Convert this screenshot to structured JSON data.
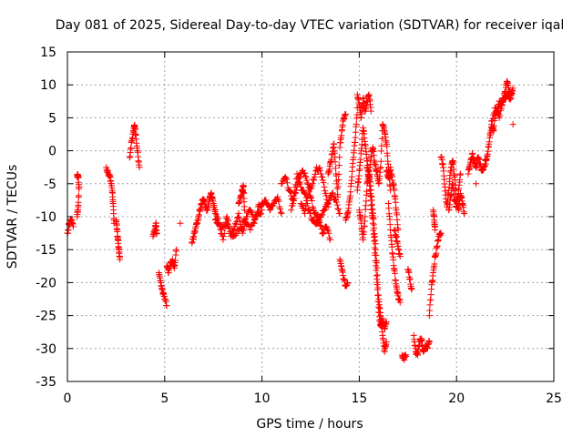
{
  "chart_data": {
    "type": "scatter",
    "title": "Day 081 of 2025, Sidereal Day-to-day VTEC variation (SDTVAR) for receiver iqal",
    "xlabel": "GPS time / hours",
    "ylabel": "SDTVAR / TECUs",
    "xlim": [
      0,
      25
    ],
    "ylim": [
      -35,
      15
    ],
    "xticks": [
      0,
      5,
      10,
      15,
      20,
      25
    ],
    "yticks": [
      -35,
      -30,
      -25,
      -20,
      -15,
      -10,
      -5,
      0,
      5,
      10,
      15
    ],
    "grid": true,
    "marker": "+",
    "color": "#ff0000",
    "segments": [
      {
        "x": [
          0.0,
          0.1,
          0.2,
          0.3
        ],
        "y": [
          -12.5,
          -11.0,
          -10.5,
          -11.5
        ]
      },
      {
        "x": [
          0.5,
          0.55,
          0.6,
          0.55,
          0.5
        ],
        "y": [
          -4.0,
          -3.8,
          -5.5,
          -8.5,
          -10.0
        ]
      },
      {
        "x": [
          2.0,
          2.1,
          2.2,
          2.3,
          2.35,
          2.4
        ],
        "y": [
          -2.5,
          -3.5,
          -4.0,
          -6.0,
          -8.0,
          -11.0
        ]
      },
      {
        "x": [
          2.5,
          2.55,
          2.6,
          2.65,
          2.7
        ],
        "y": [
          -10.5,
          -12.0,
          -13.5,
          -15.0,
          -16.5
        ]
      },
      {
        "x": [
          3.2,
          3.3,
          3.4,
          3.45,
          3.5,
          3.6,
          3.7
        ],
        "y": [
          -1.0,
          1.5,
          3.0,
          3.8,
          2.5,
          0.0,
          -2.5
        ]
      },
      {
        "x": [
          4.4,
          4.5,
          4.55,
          4.6
        ],
        "y": [
          -13.0,
          -12.0,
          -11.0,
          -12.5
        ]
      },
      {
        "x": [
          4.7,
          4.8,
          4.9,
          5.0,
          5.1
        ],
        "y": [
          -18.5,
          -20.0,
          -21.5,
          -22.5,
          -23.5
        ]
      },
      {
        "x": [
          5.1,
          5.2,
          5.3,
          5.4,
          5.5,
          5.6
        ],
        "y": [
          -17.5,
          -18.5,
          -17.0,
          -16.5,
          -17.8,
          -15.0
        ]
      },
      {
        "x": [
          5.8
        ],
        "y": [
          -11.0
        ]
      },
      {
        "x": [
          6.4,
          6.5,
          6.6,
          6.7,
          6.8,
          6.9,
          7.0,
          7.1,
          7.2,
          7.3,
          7.4,
          7.5,
          7.6
        ],
        "y": [
          -14.0,
          -13.0,
          -11.5,
          -10.5,
          -9.0,
          -8.0,
          -7.5,
          -8.5,
          -9.0,
          -7.0,
          -6.5,
          -8.0,
          -9.5
        ]
      },
      {
        "x": [
          7.6,
          7.8,
          8.0,
          8.2,
          8.4,
          8.6,
          8.8,
          9.0,
          9.2,
          9.4,
          9.6,
          9.8,
          10.0,
          10.2,
          10.4,
          10.6,
          10.8,
          11.0
        ],
        "y": [
          -10.5,
          -11.0,
          -13.5,
          -10.0,
          -13.0,
          -11.5,
          -9.5,
          -12.5,
          -10.0,
          -9.0,
          -11.0,
          -8.5,
          -8.0,
          -7.5,
          -9.0,
          -8.0,
          -7.0,
          -9.5
        ]
      },
      {
        "x": [
          7.6,
          7.9,
          8.2,
          8.5,
          8.8,
          9.1,
          9.4,
          9.7,
          10.0
        ],
        "y": [
          -9.0,
          -12.0,
          -11.0,
          -13.0,
          -12.0,
          -10.5,
          -12.0,
          -10.0,
          -9.0
        ]
      },
      {
        "x": [
          8.8,
          8.9,
          9.0,
          9.05,
          9.1
        ],
        "y": [
          -8.0,
          -7.0,
          -6.0,
          -5.5,
          -9.0
        ]
      },
      {
        "x": [
          11.0,
          11.2,
          11.4,
          11.6,
          11.8,
          12.0,
          12.2,
          12.4,
          12.6,
          12.8,
          13.0,
          13.2,
          13.4,
          13.6,
          13.8,
          14.0
        ],
        "y": [
          -5.0,
          -4.0,
          -6.0,
          -7.5,
          -3.5,
          -5.5,
          -6.5,
          -9.0,
          -10.5,
          -11.0,
          -10.0,
          -9.0,
          -8.0,
          -6.5,
          -7.5,
          -9.5
        ]
      },
      {
        "x": [
          11.5,
          11.7,
          11.9,
          12.1,
          12.3,
          12.5,
          12.7,
          12.9,
          13.1,
          13.3,
          13.5
        ],
        "y": [
          -9.0,
          -6.5,
          -4.0,
          -3.0,
          -4.5,
          -7.0,
          -9.5,
          -10.0,
          -12.5,
          -11.5,
          -13.5
        ]
      },
      {
        "x": [
          12.0,
          12.2,
          12.4,
          12.6,
          12.8,
          13.0,
          13.2,
          13.4
        ],
        "y": [
          -8.0,
          -9.5,
          -6.0,
          -5.0,
          -2.5,
          -3.0,
          -5.5,
          -8.5
        ]
      },
      {
        "x": [
          13.4,
          13.5,
          13.6,
          13.7,
          13.8,
          13.9,
          14.0,
          14.1,
          14.2,
          14.3
        ],
        "y": [
          -3.5,
          -2.0,
          -0.5,
          1.0,
          -3.5,
          -7.0,
          0.5,
          3.0,
          5.0,
          5.5
        ]
      },
      {
        "x": [
          14.0,
          14.1,
          14.2,
          14.3,
          14.4
        ],
        "y": [
          -16.5,
          -18.0,
          -19.5,
          -20.5,
          -20.0
        ]
      },
      {
        "x": [
          14.3,
          14.4,
          14.5,
          14.6,
          14.7,
          14.8,
          14.9
        ],
        "y": [
          -10.5,
          -9.5,
          -7.5,
          -4.5,
          -1.0,
          2.0,
          6.5
        ]
      },
      {
        "x": [
          14.9,
          15.0,
          15.1,
          15.2,
          15.3,
          15.4,
          15.5,
          15.6
        ],
        "y": [
          8.5,
          7.0,
          5.0,
          8.0,
          6.0,
          7.5,
          8.5,
          6.0
        ]
      },
      {
        "x": [
          14.9,
          15.0,
          15.1,
          15.2,
          15.3,
          15.4,
          15.5
        ],
        "y": [
          -6.0,
          -3.0,
          0.0,
          3.5,
          1.0,
          -1.5,
          -4.0
        ]
      },
      {
        "x": [
          15.0,
          15.1,
          15.2,
          15.3,
          15.4,
          15.5,
          15.6,
          15.7,
          15.8,
          15.9,
          16.0,
          16.1,
          16.2,
          16.3,
          16.4
        ],
        "y": [
          -9.0,
          -11.0,
          -13.5,
          -10.0,
          -5.0,
          -3.0,
          -6.0,
          -9.5,
          -13.0,
          -17.0,
          -22.5,
          -25.0,
          -28.0,
          -30.5,
          -29.0
        ]
      },
      {
        "x": [
          15.4,
          15.5,
          15.6,
          15.7,
          15.8,
          15.9,
          16.0,
          16.1,
          16.2,
          16.3,
          16.4
        ],
        "y": [
          -2.5,
          -4.0,
          -7.5,
          -11.0,
          -15.5,
          -19.5,
          -24.5,
          -26.5,
          -25.5,
          -27.0,
          -26.0
        ]
      },
      {
        "x": [
          15.5,
          15.6,
          15.7,
          15.8,
          15.9,
          16.0,
          16.1,
          16.2,
          16.3,
          16.4,
          16.5,
          16.6
        ],
        "y": [
          -4.5,
          -1.0,
          0.5,
          -2.0,
          -3.0,
          -5.0,
          -2.5,
          4.0,
          3.0,
          1.0,
          -2.5,
          -6.0
        ]
      },
      {
        "x": [
          16.4,
          16.5,
          16.6,
          16.7,
          16.8,
          16.9,
          17.0
        ],
        "y": [
          -3.0,
          -4.0,
          -2.5,
          -4.5,
          -6.0,
          -9.0,
          -12.0
        ]
      },
      {
        "x": [
          16.5,
          16.6,
          16.7,
          16.8,
          16.9,
          17.0,
          17.1
        ],
        "y": [
          -8.0,
          -12.0,
          -15.5,
          -18.0,
          -20.5,
          -22.0,
          -23.0
        ]
      },
      {
        "x": [
          16.8,
          16.9,
          17.0,
          17.1
        ],
        "y": [
          -12.0,
          -13.0,
          -14.5,
          -16.0
        ]
      },
      {
        "x": [
          17.2,
          17.3,
          17.4
        ],
        "y": [
          -31.0,
          -31.5,
          -31.2
        ]
      },
      {
        "x": [
          17.5,
          17.6,
          17.7
        ],
        "y": [
          -18.0,
          -19.5,
          -21.0
        ]
      },
      {
        "x": [
          17.8,
          17.9,
          18.0,
          18.1,
          18.2,
          18.3,
          18.4,
          18.5,
          18.6
        ],
        "y": [
          -28.0,
          -30.5,
          -31.0,
          -29.0,
          -28.5,
          -30.5,
          -29.5,
          -30.0,
          -29.0
        ]
      },
      {
        "x": [
          18.6,
          18.7,
          18.8,
          18.9,
          19.0,
          19.1,
          19.2
        ],
        "y": [
          -25.0,
          -21.0,
          -18.5,
          -16.0,
          -14.5,
          -13.0,
          -12.5
        ]
      },
      {
        "x": [
          18.8,
          18.85,
          18.9
        ],
        "y": [
          -9.0,
          -10.5,
          -12.0
        ]
      },
      {
        "x": [
          19.2,
          19.3,
          19.4,
          19.5,
          19.6,
          19.7,
          19.8,
          19.9,
          20.0,
          20.1,
          20.2,
          20.3,
          20.4
        ],
        "y": [
          -1.0,
          -2.0,
          -5.5,
          -8.5,
          -6.0,
          -3.0,
          -1.5,
          -4.0,
          -7.5,
          -9.0,
          -6.5,
          -8.0,
          -9.5
        ]
      },
      {
        "x": [
          19.6,
          19.7,
          19.8,
          19.9,
          20.0,
          20.1,
          20.2
        ],
        "y": [
          -9.0,
          -7.0,
          -5.0,
          -7.5,
          -8.5,
          -6.0,
          -3.5
        ]
      },
      {
        "x": [
          20.6,
          20.7,
          20.8,
          20.9,
          21.0,
          21.1,
          21.2,
          21.3,
          21.4,
          21.5
        ],
        "y": [
          -3.5,
          -2.0,
          -0.5,
          -1.5,
          -2.5,
          -1.0,
          -2.0,
          -3.0,
          -2.5,
          -1.5
        ]
      },
      {
        "x": [
          21.0
        ],
        "y": [
          -5.0
        ]
      },
      {
        "x": [
          21.5,
          21.6,
          21.7,
          21.8,
          21.9,
          22.0,
          22.1,
          22.2,
          22.3,
          22.4,
          22.5,
          22.6,
          22.7,
          22.8,
          22.9
        ],
        "y": [
          -2.0,
          -0.5,
          2.0,
          4.0,
          3.0,
          5.5,
          6.0,
          7.5,
          7.0,
          8.0,
          9.0,
          10.5,
          9.0,
          8.5,
          9.5
        ]
      },
      {
        "x": [
          21.8,
          22.0,
          22.2,
          22.4,
          22.6,
          22.8
        ],
        "y": [
          4.5,
          6.5,
          5.0,
          7.5,
          8.5,
          8.0
        ]
      },
      {
        "x": [
          22.9
        ],
        "y": [
          4.0
        ]
      }
    ]
  }
}
